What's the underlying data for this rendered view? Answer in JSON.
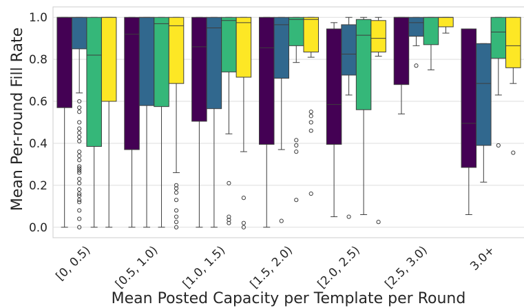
{
  "chart_data": {
    "type": "box",
    "title": "",
    "xlabel": "Mean Posted Capacity per Template per Round",
    "ylabel": "Mean Per-round Fill Rate",
    "ylim": [
      -0.05,
      1.05
    ],
    "yticks": [
      0.0,
      0.2,
      0.4,
      0.6,
      0.8,
      1.0
    ],
    "ytick_labels": [
      "0.0",
      "0.2",
      "0.4",
      "0.6",
      "0.8",
      "1.0"
    ],
    "grid": "horizontal",
    "legend": "none",
    "categories": [
      "[0, 0.5)",
      "[0.5, 1.0)",
      "[1.0, 1.5)",
      "[1.5, 2.0)",
      "[2.0, 2.5)",
      "[2.5, 3.0)",
      "3.0+"
    ],
    "series_colors": [
      "#440154",
      "#31688e",
      "#35b779",
      "#fde725"
    ],
    "series": [
      {
        "boxes": [
          {
            "q1": 0.57,
            "median": 1.0,
            "q3": 1.0,
            "whislo": 0.0,
            "whishi": 1.0,
            "fliers": []
          },
          {
            "q1": 0.37,
            "median": 0.92,
            "q3": 1.0,
            "whislo": 0.0,
            "whishi": 1.0,
            "fliers": []
          },
          {
            "q1": 0.505,
            "median": 0.86,
            "q3": 1.0,
            "whislo": 0.0,
            "whishi": 1.0,
            "fliers": []
          },
          {
            "q1": 0.395,
            "median": 0.855,
            "q3": 1.0,
            "whislo": 0.0,
            "whishi": 1.0,
            "fliers": []
          },
          {
            "q1": 0.395,
            "median": 0.585,
            "q3": 0.945,
            "whislo": 0.05,
            "whishi": 0.975,
            "fliers": []
          },
          {
            "q1": 0.68,
            "median": 1.0,
            "q3": 1.0,
            "whislo": 0.54,
            "whishi": 1.0,
            "fliers": []
          },
          {
            "q1": 0.285,
            "median": 0.495,
            "q3": 0.945,
            "whislo": 0.06,
            "whishi": 0.945,
            "fliers": []
          }
        ]
      },
      {
        "boxes": [
          {
            "q1": 0.85,
            "median": 1.0,
            "q3": 1.0,
            "whislo": 0.64,
            "whishi": 1.0,
            "fliers": [
              0.6,
              0.57,
              0.55,
              0.5,
              0.47,
              0.45,
              0.43,
              0.41,
              0.36,
              0.34,
              0.32,
              0.29,
              0.28,
              0.27,
              0.26,
              0.23,
              0.21,
              0.18,
              0.16,
              0.15,
              0.13,
              0.12,
              0.08,
              0.04,
              0.0
            ]
          },
          {
            "q1": 0.58,
            "median": 1.0,
            "q3": 1.0,
            "whislo": 0.0,
            "whishi": 1.0,
            "fliers": []
          },
          {
            "q1": 0.565,
            "median": 0.95,
            "q3": 1.0,
            "whislo": 0.0,
            "whishi": 1.0,
            "fliers": []
          },
          {
            "q1": 0.71,
            "median": 0.965,
            "q3": 1.0,
            "whislo": 0.37,
            "whishi": 1.0,
            "fliers": [
              0.03
            ]
          },
          {
            "q1": 0.725,
            "median": 0.825,
            "q3": 0.965,
            "whislo": 0.63,
            "whishi": 1.0,
            "fliers": [
              0.05
            ]
          },
          {
            "q1": 0.91,
            "median": 0.975,
            "q3": 1.0,
            "whislo": 0.865,
            "whishi": 1.0,
            "fliers": [
              0.77
            ]
          },
          {
            "q1": 0.39,
            "median": 0.685,
            "q3": 0.875,
            "whislo": 0.215,
            "whishi": 0.875,
            "fliers": []
          }
        ]
      },
      {
        "boxes": [
          {
            "q1": 0.385,
            "median": 0.82,
            "q3": 1.0,
            "whislo": 0.0,
            "whishi": 1.0,
            "fliers": []
          },
          {
            "q1": 0.575,
            "median": 0.97,
            "q3": 1.0,
            "whislo": 0.0,
            "whishi": 1.0,
            "fliers": []
          },
          {
            "q1": 0.74,
            "median": 0.985,
            "q3": 1.0,
            "whislo": 0.445,
            "whishi": 1.0,
            "fliers": [
              0.21,
              0.05,
              0.035,
              0.02
            ]
          },
          {
            "q1": 0.865,
            "median": 0.99,
            "q3": 1.0,
            "whislo": 0.785,
            "whishi": 1.0,
            "fliers": [
              0.415,
              0.39,
              0.36,
              0.13
            ]
          },
          {
            "q1": 0.56,
            "median": 0.915,
            "q3": 0.99,
            "whislo": 0.06,
            "whishi": 1.0,
            "fliers": []
          },
          {
            "q1": 0.87,
            "median": 1.0,
            "q3": 1.0,
            "whislo": 0.75,
            "whishi": 1.0,
            "fliers": []
          },
          {
            "q1": 0.805,
            "median": 0.93,
            "q3": 1.0,
            "whislo": 0.63,
            "whishi": 1.0,
            "fliers": [
              0.39
            ]
          }
        ]
      },
      {
        "boxes": [
          {
            "q1": 0.6,
            "median": 1.0,
            "q3": 1.0,
            "whislo": 0.0,
            "whishi": 1.0,
            "fliers": []
          },
          {
            "q1": 0.685,
            "median": 0.96,
            "q3": 1.0,
            "whislo": 0.26,
            "whishi": 1.0,
            "fliers": [
              0.2,
              0.185,
              0.165,
              0.13,
              0.08,
              0.05,
              0.025,
              0.0
            ]
          },
          {
            "q1": 0.715,
            "median": 0.975,
            "q3": 1.0,
            "whislo": 0.36,
            "whishi": 1.0,
            "fliers": [
              0.14,
              0.02,
              0.0
            ]
          },
          {
            "q1": 0.835,
            "median": 0.99,
            "q3": 1.0,
            "whislo": 0.81,
            "whishi": 1.0,
            "fliers": [
              0.55,
              0.53,
              0.5,
              0.46,
              0.16
            ]
          },
          {
            "q1": 0.835,
            "median": 0.9,
            "q3": 0.985,
            "whislo": 0.815,
            "whishi": 1.0,
            "fliers": [
              0.025
            ]
          },
          {
            "q1": 0.955,
            "median": 1.0,
            "q3": 1.0,
            "whislo": 0.925,
            "whishi": 1.0,
            "fliers": []
          },
          {
            "q1": 0.76,
            "median": 0.865,
            "q3": 1.0,
            "whislo": 0.685,
            "whishi": 1.0,
            "fliers": [
              0.355
            ]
          }
        ]
      }
    ]
  }
}
